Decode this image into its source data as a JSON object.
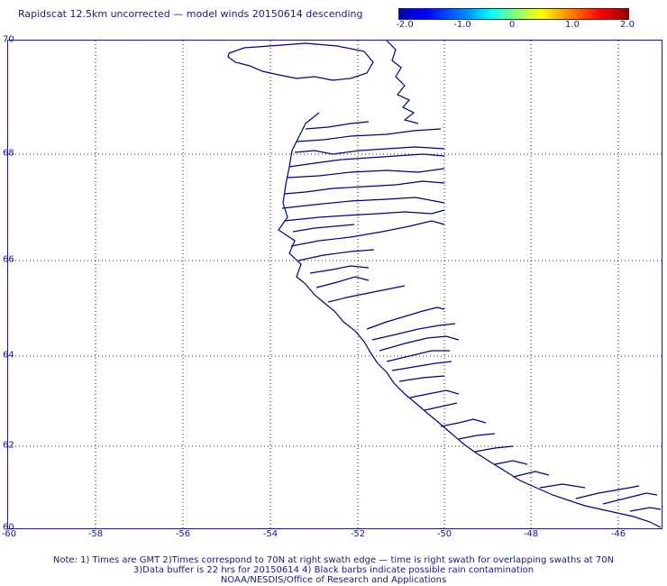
{
  "title": "Rapidscat 12.5km uncorrected — model winds 20150614 descending",
  "colorbar": {
    "labels": [
      "-2.0",
      "-1.0",
      "0",
      "1.0",
      "2.0"
    ],
    "colors": [
      "#0000b0",
      "#00ffff",
      "#ffff00",
      "#ff0000",
      "#900000"
    ]
  },
  "axes": {
    "lat_labels": [
      "70",
      "68",
      "66",
      "64",
      "62",
      "60"
    ],
    "lon_labels": [
      "-60",
      "-58",
      "-56",
      "-54",
      "-52",
      "-50",
      "-48",
      "-46"
    ]
  },
  "notes": {
    "line1": "Note: 1) Times are GMT 2)Times correspond to 70N at right swath edge — time is right swath for overlapping swaths at 70N",
    "line2": "3)Data buffer is 22 hrs for 20150614 4) Black barbs indicate possible rain contamination",
    "line3": "NOAA/NESDIS/Office of Research and Applications"
  },
  "map": {
    "region": "West Greenland coast",
    "coast_color": "#000080"
  }
}
